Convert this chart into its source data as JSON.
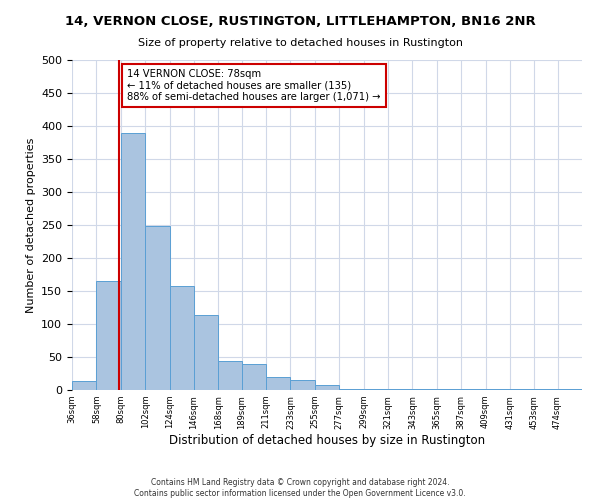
{
  "title": "14, VERNON CLOSE, RUSTINGTON, LITTLEHAMPTON, BN16 2NR",
  "subtitle": "Size of property relative to detached houses in Rustington",
  "xlabel": "Distribution of detached houses by size in Rustington",
  "ylabel": "Number of detached properties",
  "bar_values": [
    13,
    165,
    390,
    248,
    157,
    114,
    44,
    39,
    20,
    15,
    8,
    2,
    2,
    2,
    2,
    2,
    1,
    2,
    1,
    1,
    1
  ],
  "bin_edges": [
    36,
    58,
    80,
    102,
    124,
    146,
    168,
    189,
    211,
    233,
    255,
    277,
    299,
    321,
    343,
    365,
    387,
    409,
    431,
    453,
    474
  ],
  "tick_labels": [
    "36sqm",
    "58sqm",
    "80sqm",
    "102sqm",
    "124sqm",
    "146sqm",
    "168sqm",
    "189sqm",
    "211sqm",
    "233sqm",
    "255sqm",
    "277sqm",
    "299sqm",
    "321sqm",
    "343sqm",
    "365sqm",
    "387sqm",
    "409sqm",
    "431sqm",
    "453sqm",
    "474sqm"
  ],
  "bar_color": "#aac4e0",
  "bar_edge_color": "#5a9fd4",
  "red_line_x": 78,
  "annotation_title": "14 VERNON CLOSE: 78sqm",
  "annotation_line1": "← 11% of detached houses are smaller (135)",
  "annotation_line2": "88% of semi-detached houses are larger (1,071) →",
  "annotation_box_color": "#ffffff",
  "annotation_box_edge": "#cc0000",
  "ylim": [
    0,
    500
  ],
  "footer1": "Contains HM Land Registry data © Crown copyright and database right 2024.",
  "footer2": "Contains public sector information licensed under the Open Government Licence v3.0.",
  "background_color": "#ffffff",
  "grid_color": "#d0d8e8"
}
